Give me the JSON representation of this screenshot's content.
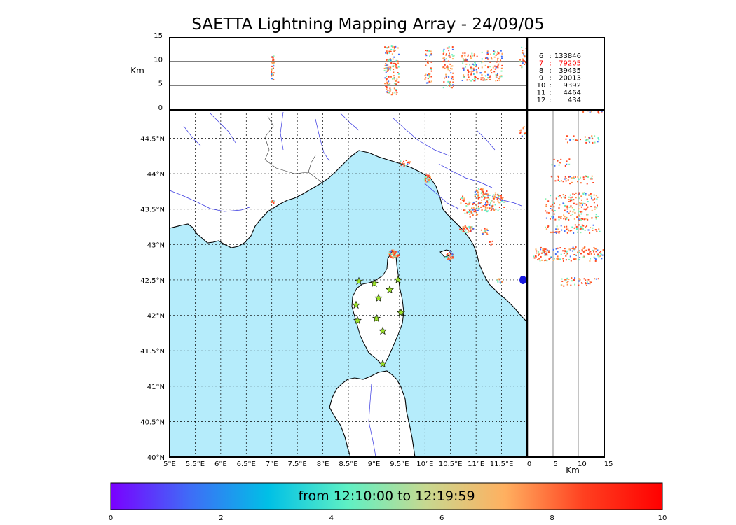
{
  "title": "SAETTA Lightning Mapping Array - 24/09/05",
  "colorbar": {
    "label": "from 12:10:00 to 12:19:59",
    "ticks": [
      "0",
      "2",
      "4",
      "6",
      "8",
      "10"
    ],
    "colors": [
      "#7a00ff",
      "#3f6cf7",
      "#00c0e6",
      "#5ef0c4",
      "#c7d890",
      "#ffb060",
      "#ff4020",
      "#ff0000"
    ]
  },
  "map": {
    "lon_labels": [
      "5°E",
      "5.5°E",
      "6°E",
      "6.5°E",
      "7°E",
      "7.5°E",
      "8°E",
      "8.5°E",
      "9°E",
      "9.5°E",
      "10°E",
      "10.5°E",
      "11°E",
      "11.5°E"
    ],
    "lat_labels": [
      "40°N",
      "40.5°N",
      "41°N",
      "41.5°N",
      "42°N",
      "42.5°N",
      "43°N",
      "43.5°N",
      "44°N",
      "44.5°N"
    ],
    "sea_color": "#b5ecfb",
    "station_color": "#9be22a"
  },
  "top_panel": {
    "ylabel": "Km",
    "yticks": [
      "0",
      "5",
      "10",
      "15"
    ]
  },
  "side_panel": {
    "xlabel": "Km",
    "xticks": [
      "0",
      "5",
      "10",
      "15"
    ]
  },
  "counts": [
    {
      "k": "6",
      "v": "133846",
      "c": "#000000"
    },
    {
      "k": "7",
      "v": "79205",
      "c": "#ff0000"
    },
    {
      "k": "8",
      "v": "39435",
      "c": "#000000"
    },
    {
      "k": "9",
      "v": "20013",
      "c": "#000000"
    },
    {
      "k": "10",
      "v": "9392",
      "c": "#000000"
    },
    {
      "k": "11",
      "v": "4464",
      "c": "#000000"
    },
    {
      "k": "12",
      "v": "434",
      "c": "#000000"
    }
  ]
}
